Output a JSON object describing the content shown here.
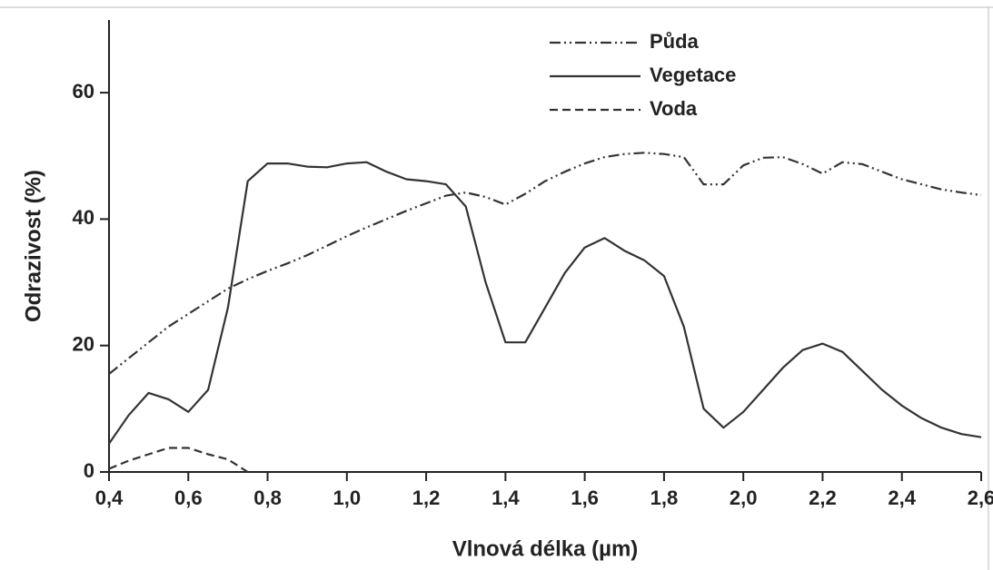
{
  "chart_data": {
    "type": "line",
    "x_label": "Vlnová délka (µm)",
    "y_label": "Odrazivost (%)",
    "x": [
      0.4,
      0.45,
      0.5,
      0.55,
      0.6,
      0.65,
      0.7,
      0.75,
      0.8,
      0.85,
      0.9,
      0.95,
      1.0,
      1.05,
      1.1,
      1.15,
      1.2,
      1.25,
      1.3,
      1.35,
      1.4,
      1.45,
      1.5,
      1.55,
      1.6,
      1.65,
      1.7,
      1.75,
      1.8,
      1.85,
      1.9,
      1.95,
      2.0,
      2.05,
      2.1,
      2.15,
      2.2,
      2.25,
      2.3,
      2.35,
      2.4,
      2.45,
      2.5,
      2.55,
      2.6
    ],
    "series": [
      {
        "name": "Půda",
        "color": "#333333",
        "dash": "dashdotdot",
        "values": [
          15.5,
          18,
          20.5,
          23,
          25,
          27,
          29,
          30.5,
          31.8,
          33,
          34.3,
          35.8,
          37.3,
          38.7,
          40,
          41.3,
          42.5,
          43.7,
          44.2,
          43.5,
          42.3,
          44,
          46,
          47.5,
          48.8,
          49.8,
          50.3,
          50.5,
          50.3,
          49.8,
          45.5,
          45.5,
          48.5,
          49.7,
          49.8,
          48.7,
          47.2,
          49,
          48.7,
          47.5,
          46.3,
          45.5,
          44.7,
          44.2,
          43.8
        ]
      },
      {
        "name": "Vegetace",
        "color": "#333333",
        "dash": "solid",
        "values": [
          4.5,
          9,
          12.5,
          11.5,
          9.5,
          13,
          26,
          46,
          48.8,
          48.8,
          48.3,
          48.2,
          48.8,
          49,
          47.5,
          46.3,
          46,
          45.5,
          42,
          30,
          20.5,
          20.5,
          26,
          31.5,
          35.5,
          37,
          35,
          33.5,
          31,
          23,
          10,
          7,
          9.5,
          13,
          16.5,
          19.3,
          20.3,
          19,
          16,
          13,
          10.5,
          8.5,
          7,
          6,
          5.5
        ]
      },
      {
        "name": "Voda",
        "color": "#333333",
        "dash": "dashed",
        "values": [
          0.5,
          1.8,
          2.8,
          3.8,
          3.8,
          2.8,
          2,
          0,
          null,
          null,
          null,
          null,
          null,
          null,
          null,
          null,
          null,
          null,
          null,
          null,
          null,
          null,
          null,
          null,
          null,
          null,
          null,
          null,
          null,
          null,
          null,
          null,
          null,
          null,
          null,
          null,
          null,
          null,
          null,
          null,
          null,
          null,
          null,
          null,
          null
        ]
      }
    ],
    "xlim": [
      0.4,
      2.6
    ],
    "xticks": [
      {
        "value": 0.4,
        "label": "0,4"
      },
      {
        "value": 0.6,
        "label": "0,6"
      },
      {
        "value": 0.8,
        "label": "0,8"
      },
      {
        "value": 1.0,
        "label": "1,0"
      },
      {
        "value": 1.2,
        "label": "1,2"
      },
      {
        "value": 1.4,
        "label": "1,4"
      },
      {
        "value": 1.6,
        "label": "1,6"
      },
      {
        "value": 1.8,
        "label": "1,8"
      },
      {
        "value": 2.0,
        "label": "2,0"
      },
      {
        "value": 2.2,
        "label": "2,2"
      },
      {
        "value": 2.4,
        "label": "2,4"
      },
      {
        "value": 2.6,
        "label": "2,6"
      }
    ],
    "ylim": [
      0,
      71.5
    ],
    "yticks": [
      0,
      20,
      40,
      60
    ],
    "grid": false,
    "legend": "top"
  }
}
